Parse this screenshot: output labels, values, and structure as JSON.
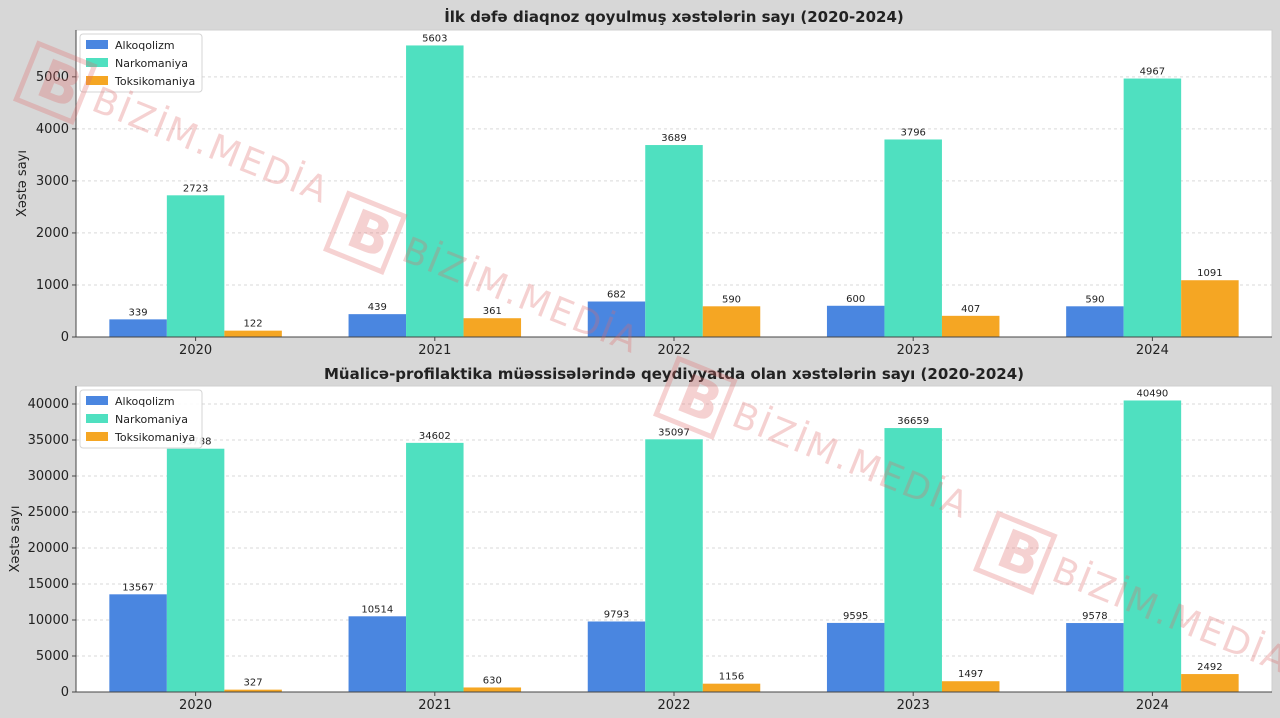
{
  "colors": {
    "Alkoqolizm": "#4a86e0",
    "Narkomaniya": "#4fe0c0",
    "Toksikomaniya": "#f5a623"
  },
  "watermark": {
    "text": "BİZİM.MEDİA",
    "logo": "B"
  },
  "chart_data": [
    {
      "type": "bar",
      "title": "İlk dəfə diaqnoz qoyulmuş xəstələrin sayı (2020-2024)",
      "xlabel": "",
      "ylabel": "Xəstə sayı",
      "categories": [
        "2020",
        "2021",
        "2022",
        "2023",
        "2024"
      ],
      "ylim": [
        0,
        5900
      ],
      "yticks": [
        0,
        1000,
        2000,
        3000,
        4000,
        5000
      ],
      "grid": true,
      "legend": "top-left",
      "series": [
        {
          "name": "Alkoqolizm",
          "values": [
            339,
            439,
            682,
            600,
            590
          ]
        },
        {
          "name": "Narkomaniya",
          "values": [
            2723,
            5603,
            3689,
            3796,
            4967
          ]
        },
        {
          "name": "Toksikomaniya",
          "values": [
            122,
            361,
            590,
            407,
            1091
          ]
        }
      ]
    },
    {
      "type": "bar",
      "title": "Müalicə-profilaktika müəssisələrində qeydiyyatda olan xəstələrin sayı (2020-2024)",
      "xlabel": "",
      "ylabel": "Xəstə sayı",
      "categories": [
        "2020",
        "2021",
        "2022",
        "2023",
        "2024"
      ],
      "ylim": [
        0,
        42500
      ],
      "yticks": [
        0,
        5000,
        10000,
        15000,
        20000,
        25000,
        30000,
        35000,
        40000
      ],
      "grid": true,
      "legend": "top-left",
      "series": [
        {
          "name": "Alkoqolizm",
          "values": [
            13567,
            10514,
            9793,
            9595,
            9578
          ]
        },
        {
          "name": "Narkomaniya",
          "values": [
            33788,
            34602,
            35097,
            36659,
            40490
          ]
        },
        {
          "name": "Toksikomaniya",
          "values": [
            327,
            630,
            1156,
            1497,
            2492
          ]
        }
      ]
    }
  ]
}
